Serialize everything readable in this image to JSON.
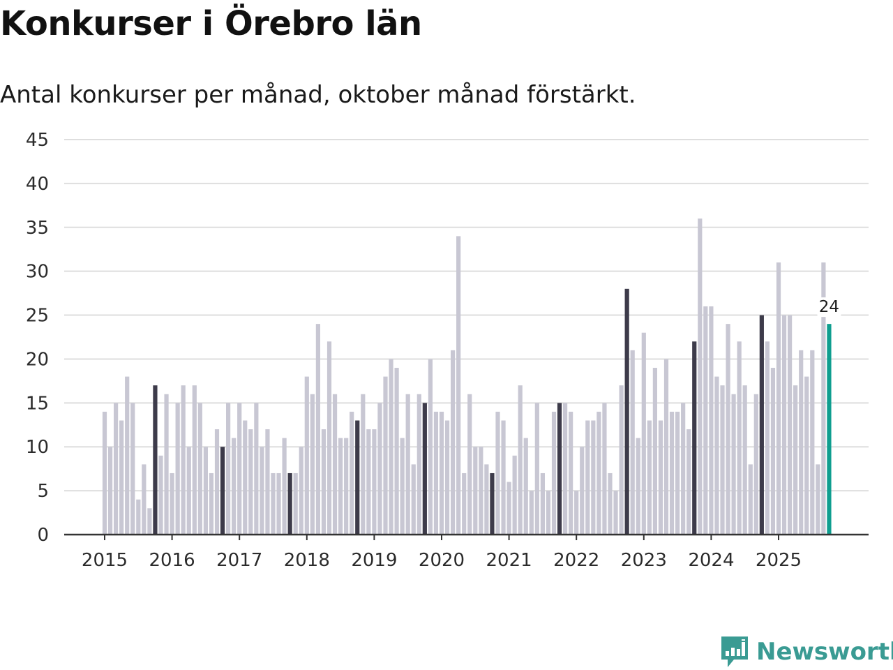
{
  "title": "Konkurser i Örebro län",
  "subtitle": "Antal konkurser per månad, oktober månad förstärkt.",
  "brand": {
    "name": "Newsworthy",
    "icon": "newsworthy-logo-icon"
  },
  "colors": {
    "bar": "#c8c7d3",
    "highlight": "#3d3b4a",
    "latest": "#0f9e8f",
    "grid": "#dedede",
    "axis": "#333333",
    "brand": "#3a9b93"
  },
  "chart_data": {
    "type": "bar",
    "title": "Konkurser i Örebro län",
    "subtitle": "Antal konkurser per månad, oktober månad förstärkt.",
    "xlabel": "",
    "ylabel": "",
    "ylim": [
      0,
      45
    ],
    "yticks": [
      "0",
      "5",
      "10",
      "15",
      "20",
      "25",
      "30",
      "35",
      "40",
      "45"
    ],
    "xticks": [
      "2015",
      "2016",
      "2017",
      "2018",
      "2019",
      "2020",
      "2021",
      "2022",
      "2023",
      "2024",
      "2025"
    ],
    "start": "2015-01",
    "highlight_month": "oktober",
    "grid": true,
    "values": [
      14,
      10,
      15,
      13,
      18,
      15,
      4,
      8,
      3,
      17,
      9,
      16,
      7,
      15,
      17,
      10,
      17,
      15,
      10,
      7,
      12,
      10,
      15,
      11,
      15,
      13,
      12,
      15,
      10,
      12,
      7,
      7,
      11,
      7,
      7,
      10,
      18,
      16,
      24,
      12,
      22,
      16,
      11,
      11,
      14,
      13,
      16,
      12,
      12,
      15,
      18,
      20,
      19,
      11,
      16,
      8,
      16,
      15,
      20,
      14,
      14,
      13,
      21,
      34,
      7,
      16,
      10,
      10,
      8,
      7,
      14,
      13,
      6,
      9,
      17,
      11,
      5,
      15,
      7,
      5,
      14,
      15,
      15,
      14,
      5,
      10,
      13,
      13,
      14,
      15,
      7,
      5,
      17,
      28,
      21,
      11,
      23,
      13,
      19,
      13,
      20,
      14,
      14,
      15,
      12,
      22,
      36,
      26,
      26,
      18,
      17,
      24,
      16,
      22,
      17,
      8,
      16,
      25,
      22,
      19,
      31,
      25,
      25,
      17,
      21,
      18,
      21,
      8,
      31,
      24
    ],
    "latest_label": "24"
  }
}
